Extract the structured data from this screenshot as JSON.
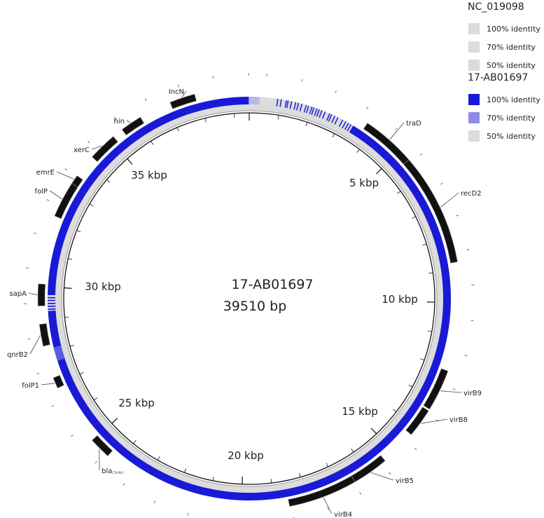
{
  "center": {
    "name": "17-AB01697",
    "length": "39510 bp"
  },
  "legend": [
    {
      "title": "NC_019098",
      "items": [
        "100% identity",
        "70% identity",
        "50% identity"
      ]
    },
    {
      "title": "17-AB01697",
      "items": [
        "100% identity",
        "70% identity",
        "50% identity"
      ]
    }
  ],
  "scale_labels": [
    "5 kbp",
    "10 kbp",
    "15 kbp",
    "20 kbp",
    "25 kbp",
    "30 kbp",
    "35 kbp"
  ],
  "genes": [
    {
      "label": "traD"
    },
    {
      "label": "recD2"
    },
    {
      "label": "virB9"
    },
    {
      "label": "virB8"
    },
    {
      "label": "virB5"
    },
    {
      "label": "virB4"
    },
    {
      "label": "bla",
      "subscript": "CTX-M-1"
    },
    {
      "label": "folP1"
    },
    {
      "label": "qnrB2"
    },
    {
      "label": "sapA"
    },
    {
      "label": "folP"
    },
    {
      "label": "emrE"
    },
    {
      "label": "xerC"
    },
    {
      "label": "hin"
    },
    {
      "label": "IncN"
    }
  ]
}
